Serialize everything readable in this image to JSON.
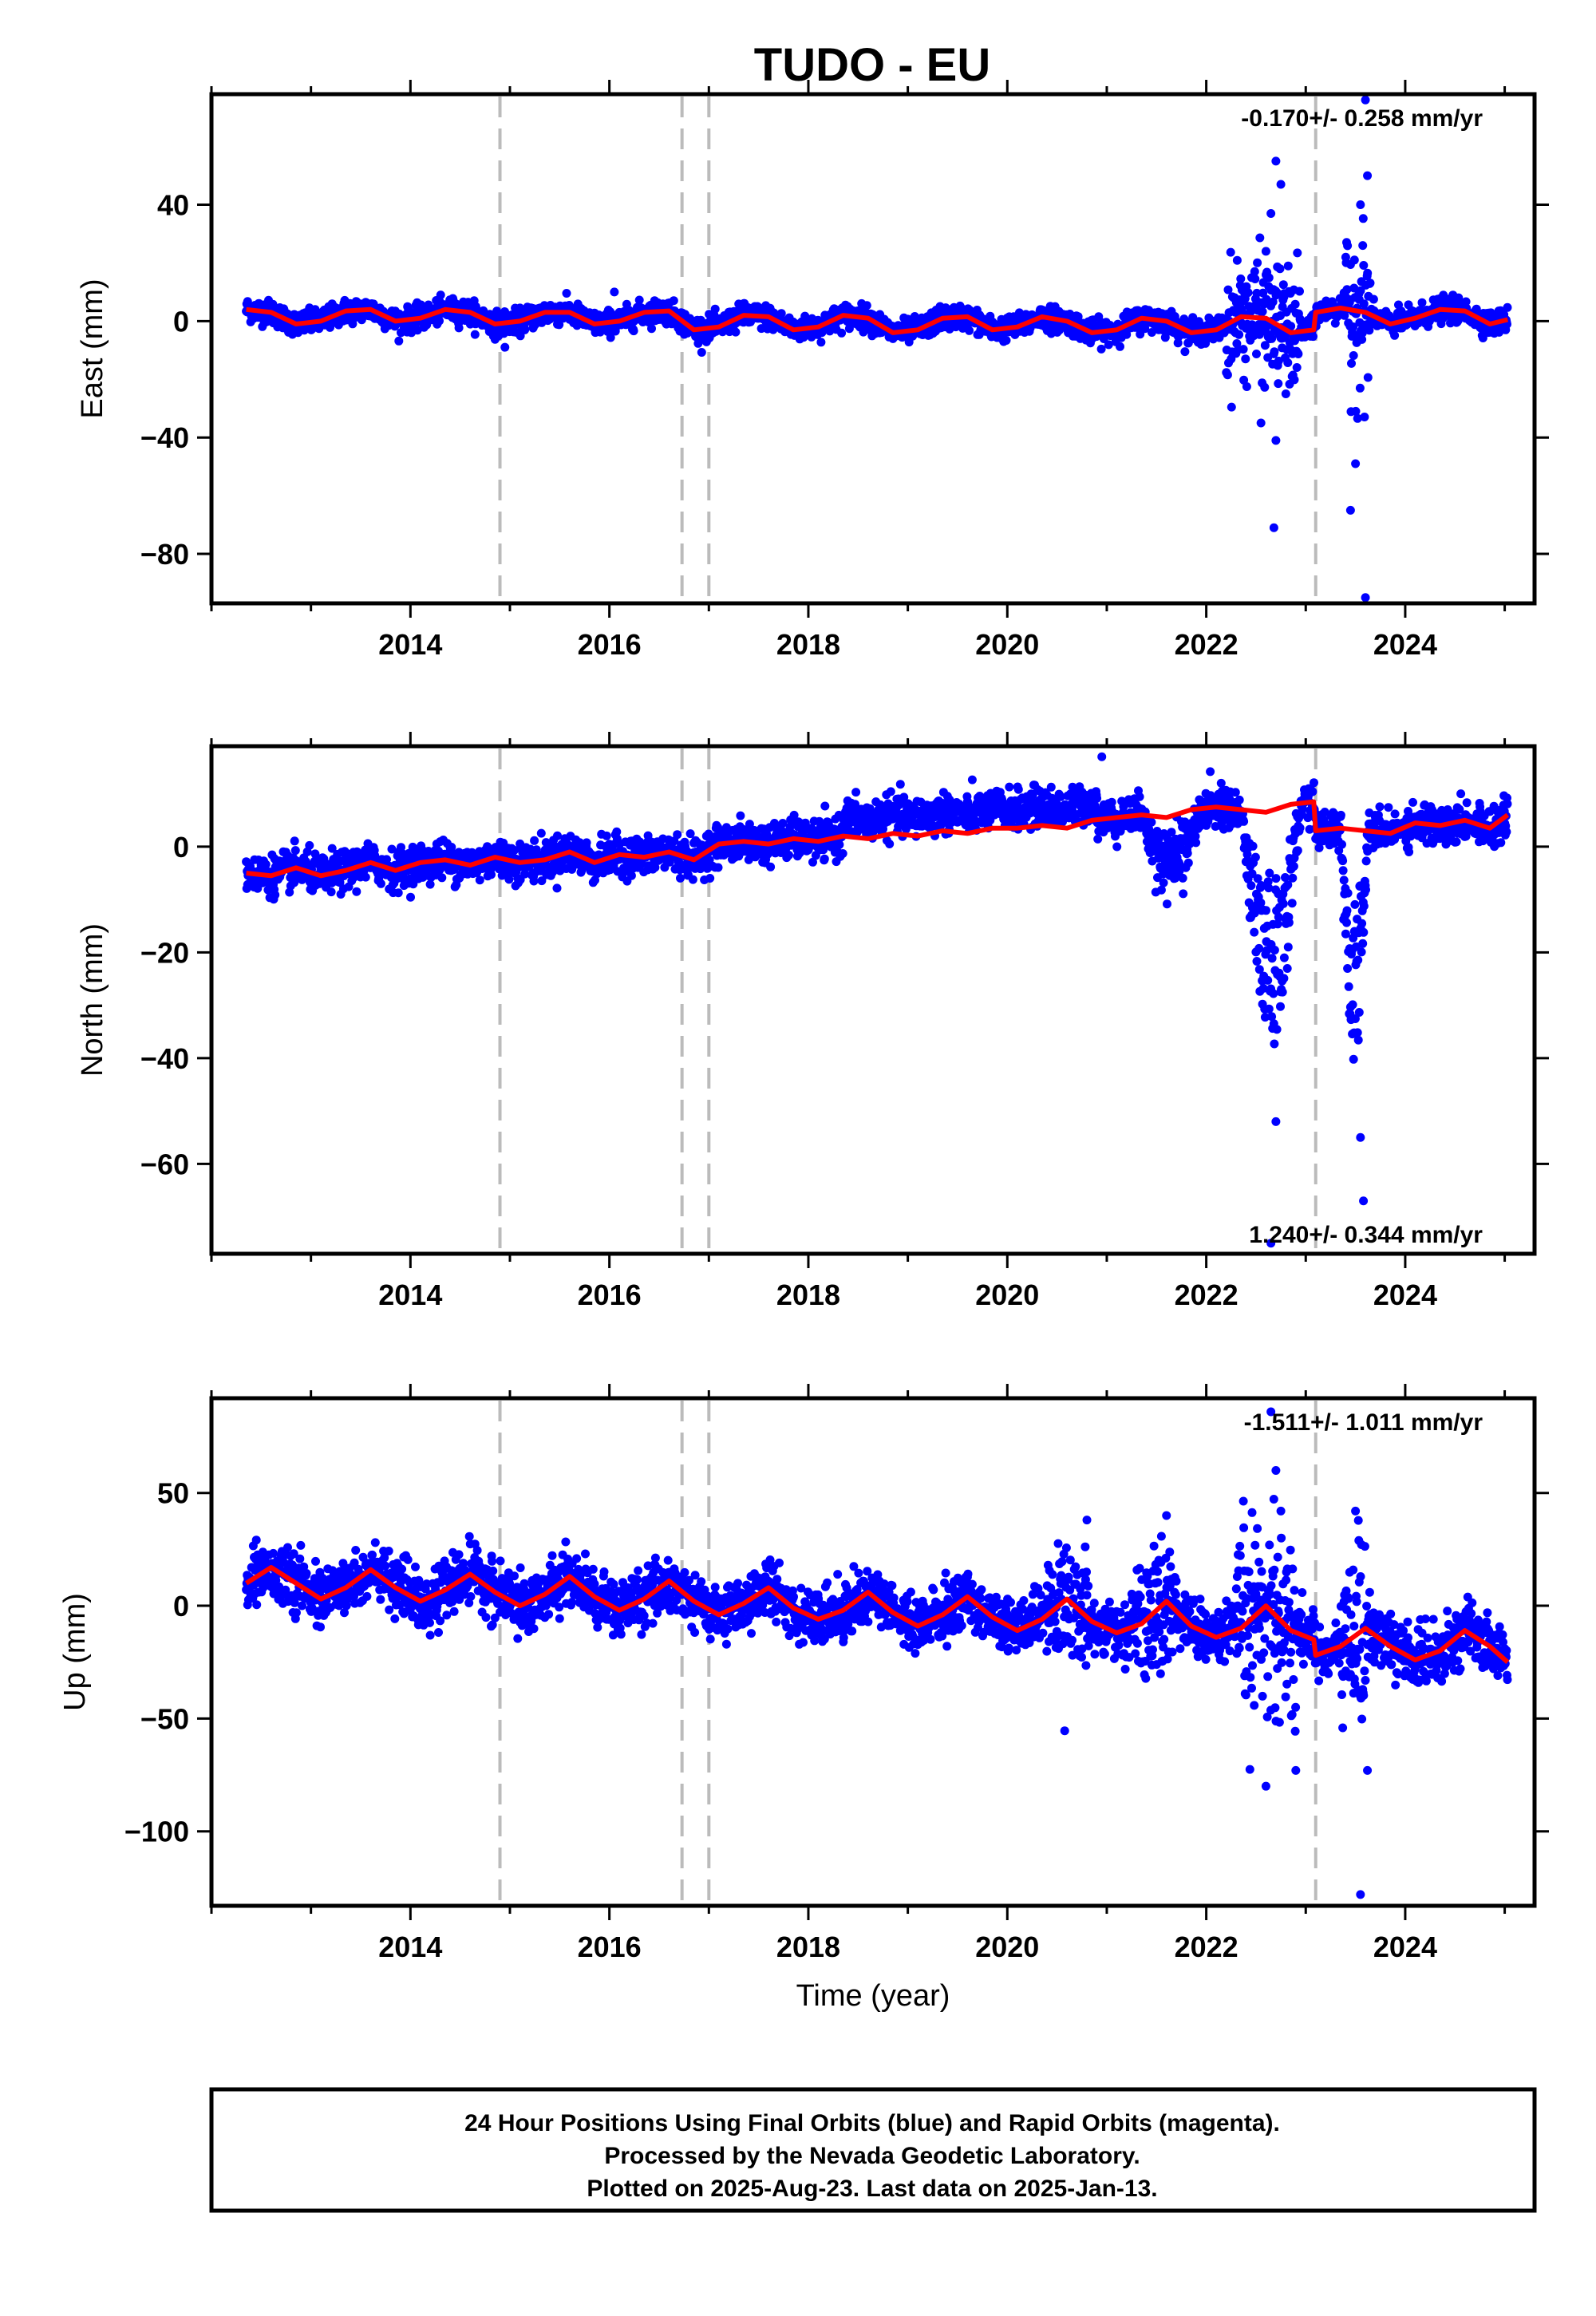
{
  "title": "TUDO - EU",
  "caption": {
    "lines": [
      "24 Hour Positions Using Final Orbits (blue) and Rapid Orbits (magenta).",
      "Processed by the Nevada Geodetic Laboratory.",
      "Plotted on 2025-Aug-23. Last data on 2025-Jan-13."
    ]
  },
  "colors": {
    "data_points": "#0000ff",
    "model_line": "#ff0000",
    "event_lines": "#bbbbbb",
    "frame": "#000000"
  },
  "chart_data": [
    {
      "type": "scatter",
      "component": "east",
      "ylabel": "East (mm)",
      "xlabel": "",
      "rate_label": "-0.170+/- 0.258 mm/yr",
      "rate_position": "top-right",
      "xlim": [
        2012.0,
        2025.3
      ],
      "ylim": [
        -97,
        78
      ],
      "x_ticks": [
        2014,
        2016,
        2018,
        2020,
        2022,
        2024
      ],
      "y_ticks": [
        -80,
        -40,
        0,
        40
      ],
      "y_tick_labels": [
        "−80",
        "−40",
        "0",
        "40"
      ],
      "event_lines_x": [
        2014.9,
        2016.73,
        2017.0,
        2023.1
      ],
      "series": [
        {
          "role": "daily_positions",
          "start": 2012.35,
          "end": 2025.03,
          "trend_rate": -0.17,
          "trend_offset": 1.0,
          "annual_amp": 3.0,
          "annual_phase": 0.3,
          "noise": 2.0,
          "noisy_windows": [
            {
              "start": 2022.2,
              "end": 2022.95,
              "noise": 10
            },
            {
              "start": 2023.4,
              "end": 2023.65,
              "noise": 14
            }
          ]
        },
        {
          "role": "model_fit",
          "x": [
            2012.35,
            2012.6,
            2012.85,
            2013.1,
            2013.35,
            2013.6,
            2013.85,
            2014.1,
            2014.35,
            2014.6,
            2014.85,
            2015.1,
            2015.35,
            2015.6,
            2015.85,
            2016.1,
            2016.35,
            2016.6,
            2016.85,
            2017.1,
            2017.35,
            2017.6,
            2017.85,
            2018.1,
            2018.35,
            2018.6,
            2018.85,
            2019.1,
            2019.35,
            2019.6,
            2019.85,
            2020.1,
            2020.35,
            2020.6,
            2020.85,
            2021.1,
            2021.35,
            2021.6,
            2021.85,
            2022.1,
            2022.35,
            2022.6,
            2022.85,
            2023.08,
            2023.1,
            2023.35,
            2023.6,
            2023.85,
            2024.1,
            2024.35,
            2024.6,
            2024.85,
            2025.03
          ],
          "y": [
            4.0,
            3.0,
            -1.0,
            0.0,
            3.5,
            4.0,
            0.0,
            1.0,
            4.0,
            3.0,
            -1.0,
            0.0,
            3.0,
            3.0,
            -1.0,
            0.0,
            3.0,
            3.5,
            -3.0,
            -2.0,
            2.0,
            1.5,
            -3.0,
            -2.0,
            2.0,
            1.0,
            -4.0,
            -3.0,
            1.0,
            1.5,
            -3.0,
            -2.0,
            1.5,
            0.0,
            -4.0,
            -3.0,
            1.0,
            0.0,
            -4.0,
            -3.0,
            1.5,
            1.0,
            -4.0,
            -3.0,
            3.0,
            4.5,
            3.0,
            -1.0,
            1.0,
            4.0,
            3.5,
            -1.0,
            0.5
          ]
        }
      ],
      "outliers": [
        {
          "x": 2022.7,
          "y": 55
        },
        {
          "x": 2022.75,
          "y": 47
        },
        {
          "x": 2022.65,
          "y": 37
        },
        {
          "x": 2022.6,
          "y": 24
        },
        {
          "x": 2022.55,
          "y": -35
        },
        {
          "x": 2022.7,
          "y": -41
        },
        {
          "x": 2022.68,
          "y": -71
        },
        {
          "x": 2022.8,
          "y": -25
        },
        {
          "x": 2023.6,
          "y": 76
        },
        {
          "x": 2023.55,
          "y": 40
        },
        {
          "x": 2023.62,
          "y": 50
        },
        {
          "x": 2023.5,
          "y": -49
        },
        {
          "x": 2023.45,
          "y": -65
        },
        {
          "x": 2023.6,
          "y": -95
        },
        {
          "x": 2016.05,
          "y": 10
        },
        {
          "x": 2014.95,
          "y": -9
        }
      ]
    },
    {
      "type": "scatter",
      "component": "north",
      "ylabel": "North (mm)",
      "xlabel": "",
      "rate_label": "1.240+/- 0.344 mm/yr",
      "rate_position": "bottom-right",
      "xlim": [
        2012.0,
        2025.3
      ],
      "ylim": [
        -77,
        19
      ],
      "x_ticks": [
        2014,
        2016,
        2018,
        2020,
        2022,
        2024
      ],
      "y_ticks": [
        -60,
        -40,
        -20,
        0
      ],
      "y_tick_labels": [
        "−60",
        "−40",
        "−20",
        "0"
      ],
      "event_lines_x": [
        2014.9,
        2016.73,
        2017.0,
        2023.1
      ],
      "series": [
        {
          "role": "daily_positions",
          "start": 2012.35,
          "end": 2025.03,
          "trend_rate": 1.24,
          "trend_offset": -5.0,
          "annual_amp": 1.2,
          "annual_phase": 0.1,
          "noise": 1.8,
          "offset_windows": [
            {
              "start": 2018.35,
              "end": 2020.9,
              "shift": 3.5
            }
          ],
          "excursions": [
            {
              "start": 2021.35,
              "end": 2021.95,
              "depth": -14
            },
            {
              "start": 2022.35,
              "end": 2022.95,
              "depth": -45
            },
            {
              "start": 2023.35,
              "end": 2023.62,
              "depth": -45
            }
          ]
        },
        {
          "role": "model_fit",
          "x": [
            2012.35,
            2012.6,
            2012.85,
            2013.1,
            2013.35,
            2013.6,
            2013.85,
            2014.1,
            2014.35,
            2014.6,
            2014.85,
            2015.1,
            2015.35,
            2015.6,
            2015.85,
            2016.1,
            2016.35,
            2016.6,
            2016.85,
            2017.1,
            2017.35,
            2017.6,
            2017.85,
            2018.1,
            2018.35,
            2018.6,
            2018.85,
            2019.1,
            2019.35,
            2019.6,
            2019.85,
            2020.1,
            2020.35,
            2020.6,
            2020.85,
            2021.1,
            2021.35,
            2021.6,
            2021.85,
            2022.1,
            2022.35,
            2022.6,
            2022.85,
            2023.08,
            2023.1,
            2023.35,
            2023.6,
            2023.85,
            2024.1,
            2024.35,
            2024.6,
            2024.85,
            2025.03
          ],
          "y": [
            -5.0,
            -5.5,
            -4.0,
            -5.5,
            -4.5,
            -3.0,
            -4.5,
            -3.0,
            -2.5,
            -3.5,
            -2.0,
            -3.0,
            -2.5,
            -1.0,
            -3.0,
            -1.5,
            -2.0,
            -1.0,
            -2.5,
            0.5,
            1.0,
            0.5,
            1.5,
            1.0,
            2.0,
            1.5,
            2.5,
            2.0,
            3.0,
            2.5,
            3.5,
            3.5,
            4.0,
            3.5,
            5.0,
            5.5,
            6.0,
            5.5,
            7.0,
            7.5,
            7.0,
            6.5,
            8.0,
            8.5,
            3.0,
            3.5,
            3.0,
            2.5,
            4.5,
            4.0,
            5.0,
            3.5,
            6.0
          ]
        }
      ],
      "outliers": [
        {
          "x": 2022.65,
          "y": -75
        },
        {
          "x": 2023.58,
          "y": -67
        },
        {
          "x": 2023.55,
          "y": -55
        },
        {
          "x": 2022.7,
          "y": -52
        },
        {
          "x": 2020.95,
          "y": 17
        },
        {
          "x": 2022.15,
          "y": 12
        }
      ]
    },
    {
      "type": "scatter",
      "component": "up",
      "ylabel": "Up (mm)",
      "xlabel": "Time (year)",
      "rate_label": "-1.511+/- 1.011 mm/yr",
      "rate_position": "top-right",
      "xlim": [
        2012.0,
        2025.3
      ],
      "ylim": [
        -133,
        92
      ],
      "x_ticks": [
        2014,
        2016,
        2018,
        2020,
        2022,
        2024
      ],
      "y_ticks": [
        -100,
        -50,
        0,
        50
      ],
      "y_tick_labels": [
        "−100",
        "−50",
        "0",
        "50"
      ],
      "event_lines_x": [
        2014.9,
        2016.73,
        2017.0,
        2023.1
      ],
      "series": [
        {
          "role": "daily_positions",
          "start": 2012.35,
          "end": 2025.03,
          "trend_rate": -1.511,
          "trend_offset": 10.0,
          "annual_amp": 7.0,
          "annual_phase": 0.55,
          "noise": 6.0,
          "noisy_windows": [
            {
              "start": 2020.4,
              "end": 2020.8,
              "noise": 12
            },
            {
              "start": 2021.3,
              "end": 2021.7,
              "noise": 14
            },
            {
              "start": 2022.3,
              "end": 2022.9,
              "noise": 22
            },
            {
              "start": 2023.35,
              "end": 2023.65,
              "noise": 20
            }
          ]
        },
        {
          "role": "model_fit",
          "x": [
            2012.35,
            2012.6,
            2012.85,
            2013.1,
            2013.35,
            2013.6,
            2013.85,
            2014.1,
            2014.35,
            2014.6,
            2014.85,
            2015.1,
            2015.35,
            2015.6,
            2015.85,
            2016.1,
            2016.35,
            2016.6,
            2016.85,
            2017.1,
            2017.35,
            2017.6,
            2017.85,
            2018.1,
            2018.35,
            2018.6,
            2018.85,
            2019.1,
            2019.35,
            2019.6,
            2019.85,
            2020.1,
            2020.35,
            2020.6,
            2020.85,
            2021.1,
            2021.35,
            2021.6,
            2021.85,
            2022.1,
            2022.35,
            2022.6,
            2022.85,
            2023.08,
            2023.1,
            2023.35,
            2023.6,
            2023.85,
            2024.1,
            2024.35,
            2024.6,
            2024.85,
            2025.03
          ],
          "y": [
            10,
            17,
            10,
            3,
            8,
            16,
            8,
            2,
            7,
            14,
            6,
            0,
            5,
            13,
            4,
            -2,
            3,
            11,
            2,
            -4,
            1,
            8,
            -1,
            -6,
            -2,
            6,
            -3,
            -9,
            -4,
            4,
            -5,
            -11,
            -6,
            3,
            -7,
            -12,
            -8,
            2,
            -9,
            -14,
            -10,
            0,
            -11,
            -15,
            -22,
            -18,
            -10,
            -18,
            -24,
            -20,
            -11,
            -18,
            -25
          ]
        }
      ],
      "outliers": [
        {
          "x": 2022.65,
          "y": 86
        },
        {
          "x": 2022.7,
          "y": 60
        },
        {
          "x": 2022.75,
          "y": 42
        },
        {
          "x": 2023.5,
          "y": 42
        },
        {
          "x": 2023.55,
          "y": -128
        },
        {
          "x": 2022.6,
          "y": -80
        },
        {
          "x": 2022.9,
          "y": -73
        },
        {
          "x": 2023.62,
          "y": -73
        },
        {
          "x": 2021.6,
          "y": 40
        },
        {
          "x": 2020.8,
          "y": 38
        }
      ]
    }
  ]
}
